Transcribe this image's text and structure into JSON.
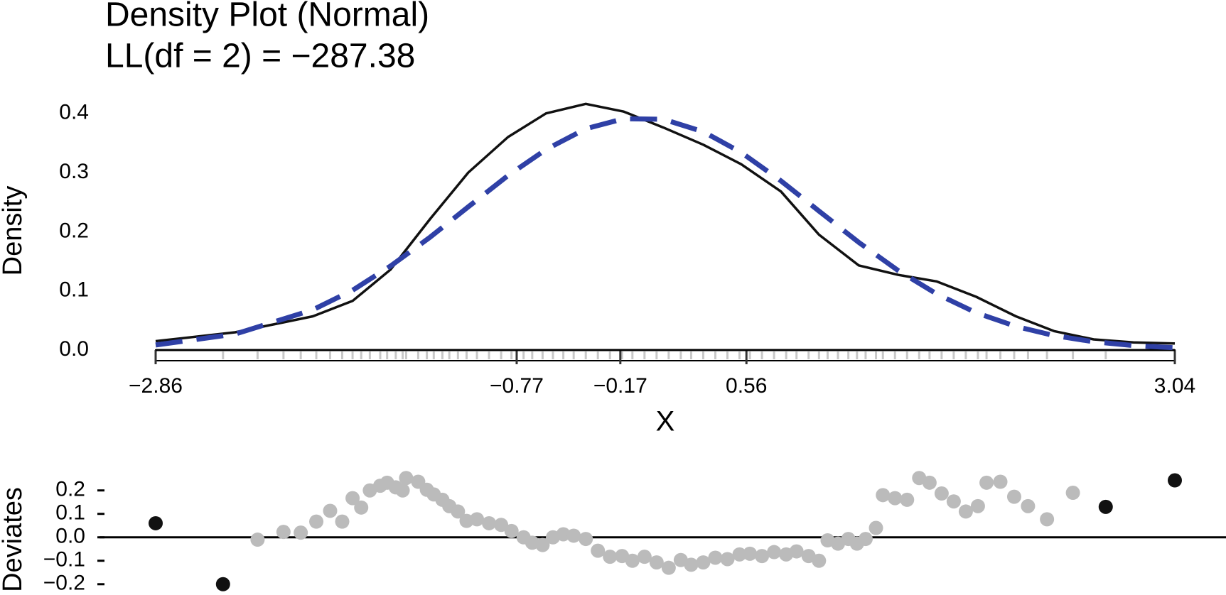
{
  "chart_data": [
    {
      "type": "line",
      "title": "Density Plot (Normal)",
      "subtitle": "LL(df = 2) = −287.38",
      "x_label": "X",
      "y_label": "Density",
      "xlim": [
        -2.86,
        3.04
      ],
      "ylim": [
        0,
        0.42
      ],
      "xticks": [
        {
          "value": -2.86,
          "label": "−2.86"
        },
        {
          "value": -0.77,
          "label": "−0.77"
        },
        {
          "value": -0.17,
          "label": "−0.17"
        },
        0.56,
        3.04
      ],
      "yticks": [
        {
          "value": 0,
          "label": "0.0"
        },
        0.1,
        0.2,
        0.3,
        0.4
      ],
      "x": [
        -2.86,
        -2.4,
        -1.95,
        -1.72,
        -1.5,
        -1.27,
        -1.05,
        -0.82,
        -0.6,
        -0.37,
        -0.15,
        0.08,
        0.31,
        0.53,
        0.76,
        0.98,
        1.21,
        1.44,
        1.66,
        1.89,
        2.12,
        2.34,
        2.57,
        2.8,
        3.04
      ],
      "series": [
        {
          "color": "#111111",
          "style": "solid",
          "values": [
            0.015,
            0.03,
            0.057,
            0.083,
            0.136,
            0.222,
            0.3,
            0.36,
            0.4,
            0.416,
            0.403,
            0.376,
            0.347,
            0.314,
            0.268,
            0.195,
            0.143,
            0.127,
            0.116,
            0.09,
            0.057,
            0.032,
            0.018,
            0.013,
            0.011
          ]
        },
        {
          "color": "#2f40a6",
          "style": "dashed",
          "values": [
            0.0085,
            0.027,
            0.068,
            0.101,
            0.142,
            0.191,
            0.242,
            0.295,
            0.339,
            0.374,
            0.391,
            0.39,
            0.369,
            0.334,
            0.286,
            0.235,
            0.182,
            0.134,
            0.095,
            0.063,
            0.04,
            0.0245,
            0.014,
            0.0076,
            0.0038
          ]
        }
      ]
    },
    {
      "type": "scatter",
      "y_label": "Deviates",
      "xlim": [
        -2.86,
        3.04
      ],
      "ylim": [
        -0.24,
        0.29
      ],
      "yticks": [
        {
          "value": -0.2,
          "label": "−0.2"
        },
        {
          "value": -0.1,
          "label": "−0.1"
        },
        {
          "value": 0,
          "label": "0.0"
        },
        0.1,
        0.2
      ],
      "series": [
        {
          "color": "#bbbbbb",
          "x": [
            -2.27,
            -2.12,
            -2.02,
            -1.93,
            -1.85,
            -1.78,
            -1.72,
            -1.67,
            -1.62,
            -1.56,
            -1.52,
            -1.47,
            -1.43,
            -1.41,
            -1.34,
            -1.29,
            -1.25,
            -1.2,
            -1.16,
            -1.11,
            -1.06,
            -1.0,
            -0.93,
            -0.86,
            -0.8,
            -0.73,
            -0.68,
            -0.62,
            -0.56,
            -0.5,
            -0.44,
            -0.37,
            -0.3,
            -0.23,
            -0.16,
            -0.1,
            -0.03,
            0.04,
            0.11,
            0.18,
            0.24,
            0.31,
            0.38,
            0.45,
            0.52,
            0.58,
            0.65,
            0.72,
            0.79,
            0.85,
            0.92,
            0.98,
            1.03,
            1.09,
            1.15,
            1.2,
            1.25,
            1.31,
            1.35,
            1.42,
            1.49,
            1.56,
            1.62,
            1.69,
            1.76,
            1.83,
            1.9,
            1.95,
            2.03,
            2.11,
            2.19,
            2.3,
            2.45
          ],
          "values": [
            -0.01,
            0.023,
            0.02,
            0.067,
            0.113,
            0.067,
            0.167,
            0.127,
            0.2,
            0.22,
            0.233,
            0.213,
            0.2,
            0.253,
            0.237,
            0.203,
            0.183,
            0.16,
            0.133,
            0.11,
            0.07,
            0.077,
            0.06,
            0.053,
            0.027,
            0.0,
            -0.023,
            -0.033,
            0.0,
            0.013,
            0.007,
            -0.007,
            -0.057,
            -0.083,
            -0.08,
            -0.1,
            -0.083,
            -0.107,
            -0.13,
            -0.097,
            -0.117,
            -0.107,
            -0.087,
            -0.093,
            -0.073,
            -0.07,
            -0.08,
            -0.063,
            -0.073,
            -0.06,
            -0.08,
            -0.1,
            -0.013,
            -0.027,
            -0.007,
            -0.027,
            -0.007,
            0.04,
            0.18,
            0.167,
            0.16,
            0.253,
            0.233,
            0.187,
            0.153,
            0.11,
            0.133,
            0.233,
            0.237,
            0.173,
            0.133,
            0.077,
            0.19
          ]
        },
        {
          "color": "#111111",
          "x": [
            -2.86,
            -2.47,
            2.64,
            3.04
          ],
          "values": [
            0.06,
            -0.2,
            0.13,
            0.243
          ]
        }
      ]
    }
  ]
}
